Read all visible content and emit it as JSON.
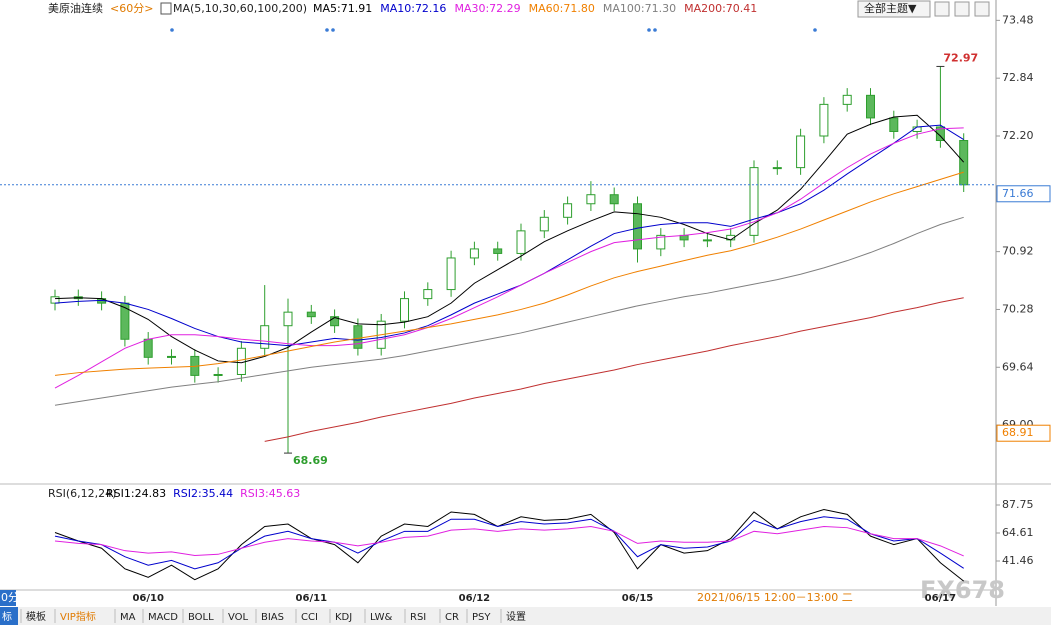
{
  "header": {
    "symbol": "美原油连续",
    "period": "<60分>",
    "theme_button": "全部主题▼",
    "period_tab": "0分"
  },
  "chart_data": [
    {
      "type": "candlestick",
      "indicator_label": "MA(5,10,30,60,100,200)",
      "up_color": "#ffffff",
      "down_color": "#5cb85c",
      "edge_color": "#2e9e2e",
      "ylim": [
        68.37,
        73.65
      ],
      "yticks": [
        {
          "value": 69.0,
          "label": "69.00"
        },
        69.64,
        70.28,
        70.92,
        71.56,
        {
          "value": 72.2,
          "label": "72.20"
        },
        72.84,
        73.48
      ],
      "open": [
        70.35,
        70.42,
        70.4,
        70.35,
        69.95,
        69.75,
        69.76,
        69.55,
        69.56,
        69.85,
        70.1,
        70.25,
        70.2,
        70.1,
        69.85,
        70.15,
        70.4,
        70.5,
        70.85,
        70.95,
        70.9,
        71.15,
        71.3,
        71.45,
        71.55,
        71.45,
        70.95,
        71.1,
        71.05,
        71.05,
        71.1,
        71.85,
        71.85,
        72.2,
        72.55,
        72.65,
        72.4,
        72.25,
        72.3,
        72.15
      ],
      "high": [
        70.5,
        70.5,
        70.48,
        70.43,
        70.03,
        69.84,
        69.84,
        69.64,
        69.93,
        70.55,
        70.4,
        70.33,
        70.28,
        70.18,
        70.23,
        70.48,
        70.58,
        70.93,
        71.03,
        71.03,
        71.23,
        71.38,
        71.53,
        71.7,
        71.63,
        71.53,
        71.18,
        71.18,
        71.13,
        71.18,
        71.93,
        71.93,
        72.28,
        72.63,
        72.73,
        72.73,
        72.48,
        72.38,
        72.97,
        72.23
      ],
      "low": [
        70.27,
        70.32,
        70.27,
        69.87,
        69.67,
        69.67,
        69.47,
        69.47,
        69.48,
        69.77,
        68.69,
        70.12,
        70.02,
        69.77,
        69.77,
        70.07,
        70.32,
        70.42,
        70.77,
        70.82,
        70.82,
        71.07,
        71.22,
        71.37,
        71.37,
        70.8,
        70.87,
        70.97,
        70.97,
        70.97,
        71.02,
        71.77,
        71.77,
        72.12,
        72.47,
        72.32,
        72.17,
        72.17,
        72.07,
        71.58
      ],
      "close": [
        70.42,
        70.4,
        70.35,
        69.95,
        69.75,
        69.76,
        69.55,
        69.56,
        69.85,
        70.1,
        70.25,
        70.2,
        70.1,
        69.85,
        70.15,
        70.4,
        70.5,
        70.85,
        70.95,
        70.9,
        71.15,
        71.3,
        71.45,
        71.55,
        71.45,
        70.95,
        71.1,
        71.05,
        71.05,
        71.1,
        71.85,
        71.85,
        72.2,
        72.55,
        72.65,
        72.4,
        72.25,
        72.3,
        72.15,
        71.66
      ],
      "axis_markers": [
        68.91
      ],
      "series": [
        {
          "name": "MA5:71.91",
          "color": "#000000",
          "values": [
            70.4,
            70.41,
            70.4,
            70.3,
            70.17,
            69.98,
            69.83,
            69.71,
            69.69,
            69.76,
            69.86,
            70.03,
            70.19,
            70.12,
            70.11,
            70.14,
            70.2,
            70.35,
            70.57,
            70.72,
            70.87,
            71.03,
            71.15,
            71.26,
            71.36,
            71.34,
            71.3,
            71.22,
            71.12,
            71.05,
            71.23,
            71.38,
            71.61,
            71.91,
            72.22,
            72.33,
            72.41,
            72.43,
            72.2,
            71.91
          ]
        },
        {
          "name": "MA10:72.16",
          "color": "#0000cc",
          "values": [
            70.35,
            70.37,
            70.38,
            70.35,
            70.28,
            70.18,
            70.07,
            69.98,
            69.92,
            69.9,
            69.88,
            69.92,
            69.96,
            69.94,
            69.97,
            70.02,
            70.1,
            70.22,
            70.35,
            70.45,
            70.55,
            70.68,
            70.83,
            70.98,
            71.12,
            71.18,
            71.22,
            71.24,
            71.24,
            71.2,
            71.28,
            71.35,
            71.45,
            71.6,
            71.78,
            71.95,
            72.12,
            72.3,
            72.32,
            72.16
          ]
        },
        {
          "name": "MA30:72.29",
          "color": "#e020e0",
          "values": [
            69.41,
            69.55,
            69.7,
            69.85,
            69.95,
            70.0,
            70.0,
            69.98,
            69.95,
            69.93,
            69.9,
            69.88,
            69.88,
            69.9,
            69.95,
            70.0,
            70.08,
            70.18,
            70.3,
            70.42,
            70.55,
            70.68,
            70.8,
            70.92,
            71.02,
            71.05,
            71.08,
            71.1,
            71.13,
            71.17,
            71.25,
            71.35,
            71.5,
            71.68,
            71.85,
            72.0,
            72.12,
            72.22,
            72.28,
            72.29
          ]
        },
        {
          "name": "MA60:71.80",
          "color": "#f08000",
          "values": [
            69.55,
            69.58,
            69.6,
            69.62,
            69.63,
            69.64,
            69.65,
            69.68,
            69.72,
            69.77,
            69.82,
            69.87,
            69.92,
            69.96,
            70.0,
            70.04,
            70.08,
            70.12,
            70.17,
            70.22,
            70.28,
            70.35,
            70.44,
            70.54,
            70.63,
            70.7,
            70.76,
            70.82,
            70.88,
            70.93,
            71.0,
            71.08,
            71.17,
            71.27,
            71.37,
            71.47,
            71.56,
            71.64,
            71.72,
            71.8
          ]
        },
        {
          "name": "MA100:71.30",
          "color": "#808080",
          "values": [
            69.22,
            69.26,
            69.3,
            69.34,
            69.38,
            69.42,
            69.45,
            69.48,
            69.52,
            69.56,
            69.6,
            69.64,
            69.67,
            69.7,
            69.73,
            69.77,
            69.82,
            69.87,
            69.92,
            69.97,
            70.02,
            70.08,
            70.14,
            70.2,
            70.26,
            70.32,
            70.37,
            70.42,
            70.46,
            70.51,
            70.56,
            70.61,
            70.67,
            70.74,
            70.82,
            70.91,
            71.01,
            71.12,
            71.22,
            71.3
          ]
        },
        {
          "name": "MA200:70.41",
          "color": "#c03030",
          "values": [
            null,
            null,
            null,
            null,
            null,
            null,
            null,
            null,
            null,
            68.82,
            68.87,
            68.93,
            68.98,
            69.03,
            69.09,
            69.14,
            69.19,
            69.24,
            69.3,
            69.35,
            69.4,
            69.46,
            69.51,
            69.56,
            69.61,
            69.67,
            69.72,
            69.77,
            69.82,
            69.88,
            69.93,
            69.98,
            70.04,
            70.09,
            70.14,
            70.19,
            70.25,
            70.3,
            70.36,
            70.41
          ]
        }
      ]
    },
    {
      "type": "line",
      "indicator_label": "RSI(6,12,24)",
      "ylim": [
        17.5,
        101.8
      ],
      "yticks": [
        41.46,
        64.61,
        87.75
      ],
      "categories": [
        null,
        null,
        null,
        null,
        "06/10",
        null,
        null,
        null,
        null,
        null,
        null,
        "06/11",
        null,
        null,
        null,
        null,
        null,
        null,
        "06/12",
        null,
        null,
        null,
        null,
        null,
        null,
        "06/15",
        null,
        null,
        null,
        null,
        null,
        null,
        null,
        null,
        null,
        null,
        null,
        null,
        "06/17",
        null
      ],
      "series": [
        {
          "name": "RSI1:24.83",
          "color": "#000000",
          "values": [
            65,
            58,
            52,
            35,
            28,
            38,
            26,
            35,
            55,
            70,
            72,
            60,
            55,
            40,
            62,
            72,
            70,
            82,
            80,
            70,
            78,
            75,
            76,
            80,
            65,
            35,
            55,
            48,
            50,
            60,
            82,
            68,
            78,
            84,
            80,
            62,
            55,
            60,
            40,
            24.83
          ]
        },
        {
          "name": "RSI2:35.44",
          "color": "#0000cc",
          "values": [
            62,
            58,
            55,
            45,
            38,
            42,
            35,
            40,
            52,
            62,
            66,
            60,
            57,
            48,
            58,
            66,
            66,
            76,
            76,
            70,
            74,
            72,
            73,
            76,
            66,
            45,
            55,
            52,
            53,
            58,
            75,
            68,
            74,
            78,
            76,
            64,
            58,
            60,
            48,
            35.44
          ]
        },
        {
          "name": "RSI3:45.63",
          "color": "#e020e0",
          "values": [
            58,
            56,
            55,
            50,
            48,
            49,
            46,
            47,
            52,
            57,
            60,
            58,
            57,
            54,
            57,
            61,
            62,
            67,
            68,
            66,
            68,
            67,
            68,
            70,
            66,
            56,
            58,
            57,
            57,
            58,
            66,
            64,
            67,
            70,
            69,
            64,
            60,
            60,
            54,
            45.63
          ]
        }
      ]
    }
  ],
  "crosshair_label": "2021/06/15 12:00－13:00 二",
  "watermark": "FX678",
  "toolbar": [
    "标",
    "模板",
    "VIP指标",
    "MA",
    "MACD",
    "BOLL",
    "VOL",
    "BIAS",
    "CCI",
    "KDJ",
    "LW&",
    "RSI",
    "CR",
    "PSY",
    "设置"
  ]
}
